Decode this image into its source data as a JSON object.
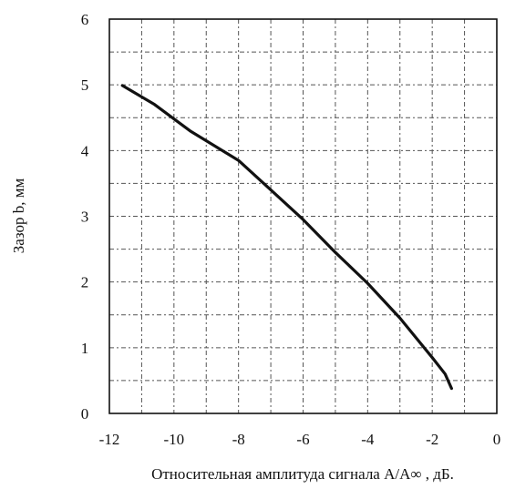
{
  "chart_data": {
    "type": "line",
    "xlabel": "Относительная амплитуда сигнала A/A∞ , дБ.",
    "ylabel": "Зазор  b, мм",
    "xlim": [
      -12,
      0
    ],
    "ylim": [
      0,
      6
    ],
    "x_ticks": [
      "-12",
      "-10",
      "-8",
      "-6",
      "-4",
      "-2",
      "0"
    ],
    "y_ticks": [
      "0",
      "1",
      "2",
      "3",
      "4",
      "5",
      "6"
    ],
    "grid": true,
    "series": [
      {
        "values": [
          {
            "x": -11.6,
            "y": 4.99
          },
          {
            "x": -10.6,
            "y": 4.7
          },
          {
            "x": -9.5,
            "y": 4.3
          },
          {
            "x": -8.0,
            "y": 3.85
          },
          {
            "x": -7.0,
            "y": 3.4
          },
          {
            "x": -6.0,
            "y": 2.95
          },
          {
            "x": -5.0,
            "y": 2.45
          },
          {
            "x": -4.0,
            "y": 1.98
          },
          {
            "x": -3.0,
            "y": 1.45
          },
          {
            "x": -2.0,
            "y": 0.85
          },
          {
            "x": -1.6,
            "y": 0.6
          },
          {
            "x": -1.4,
            "y": 0.38
          }
        ]
      }
    ]
  }
}
